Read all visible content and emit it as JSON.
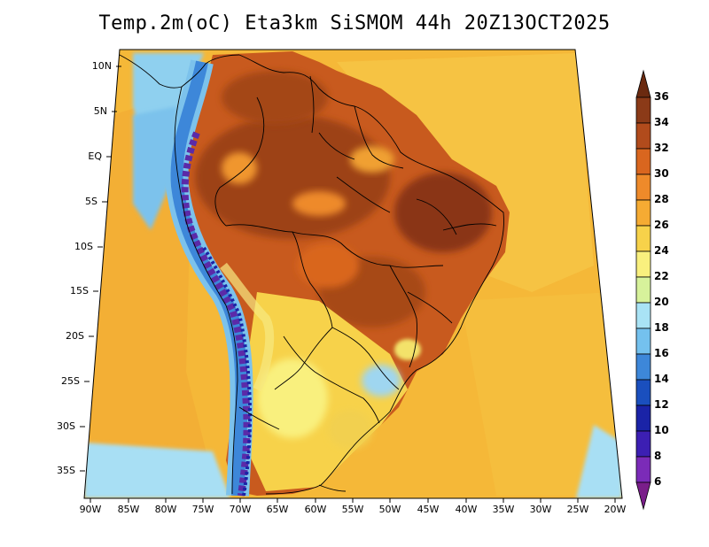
{
  "title": "Temp.2m(oC) Eta3km SiSMOM 44h 20Z13OCT2025",
  "lat_labels": [
    "10N",
    "5N",
    "EQ",
    "5S",
    "10S",
    "15S",
    "20S",
    "25S",
    "30S",
    "35S"
  ],
  "lon_labels": [
    "90W",
    "85W",
    "80W",
    "75W",
    "70W",
    "65W",
    "60W",
    "55W",
    "50W",
    "45W",
    "40W",
    "35W",
    "30W",
    "25W",
    "20W"
  ],
  "colorbar": {
    "labels": [
      "36",
      "34",
      "32",
      "30",
      "28",
      "26",
      "24",
      "22",
      "20",
      "18",
      "16",
      "14",
      "12",
      "10",
      "8",
      "6"
    ],
    "colors": [
      "#6b2a10",
      "#8b3a18",
      "#b14b1c",
      "#d9661f",
      "#ee8a2a",
      "#f5ab33",
      "#f7d24a",
      "#f9f07e",
      "#d7f29b",
      "#a9e3f5",
      "#74c1ee",
      "#3d87d9",
      "#1a4fbe",
      "#1a23a7",
      "#3c1fb3",
      "#7b2bb8",
      "#7a1e8a"
    ]
  }
}
